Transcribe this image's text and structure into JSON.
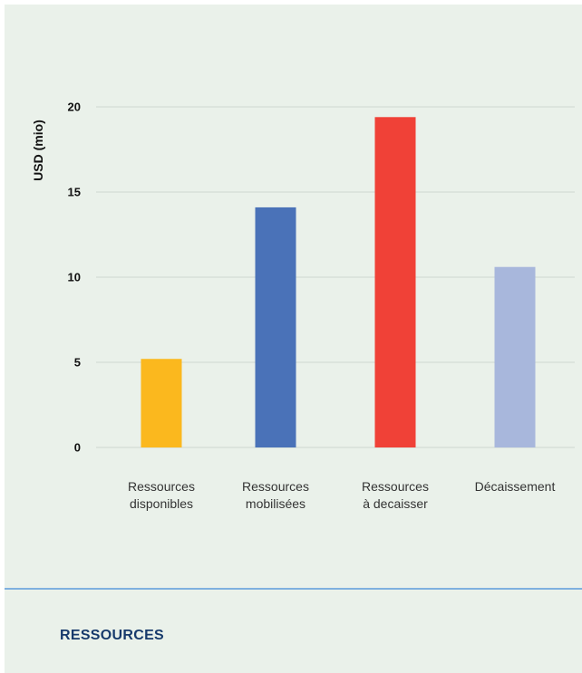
{
  "chart_data": {
    "type": "bar",
    "ylabel": "USD (mio)",
    "ylim": [
      0,
      20
    ],
    "yticks": [
      0,
      5,
      10,
      15,
      20
    ],
    "grid": true,
    "categories": [
      [
        "Ressources",
        "disponibles"
      ],
      [
        "Ressources",
        "mobilisées"
      ],
      [
        "Ressources",
        "à decaisser"
      ],
      [
        "Décaissement"
      ]
    ],
    "values": [
      5.2,
      14.1,
      19.4,
      10.6
    ],
    "colors": [
      "#fbb81e",
      "#4a72b8",
      "#f04137",
      "#a8b7dc"
    ]
  },
  "footer": {
    "section_label": "RESSOURCES"
  }
}
